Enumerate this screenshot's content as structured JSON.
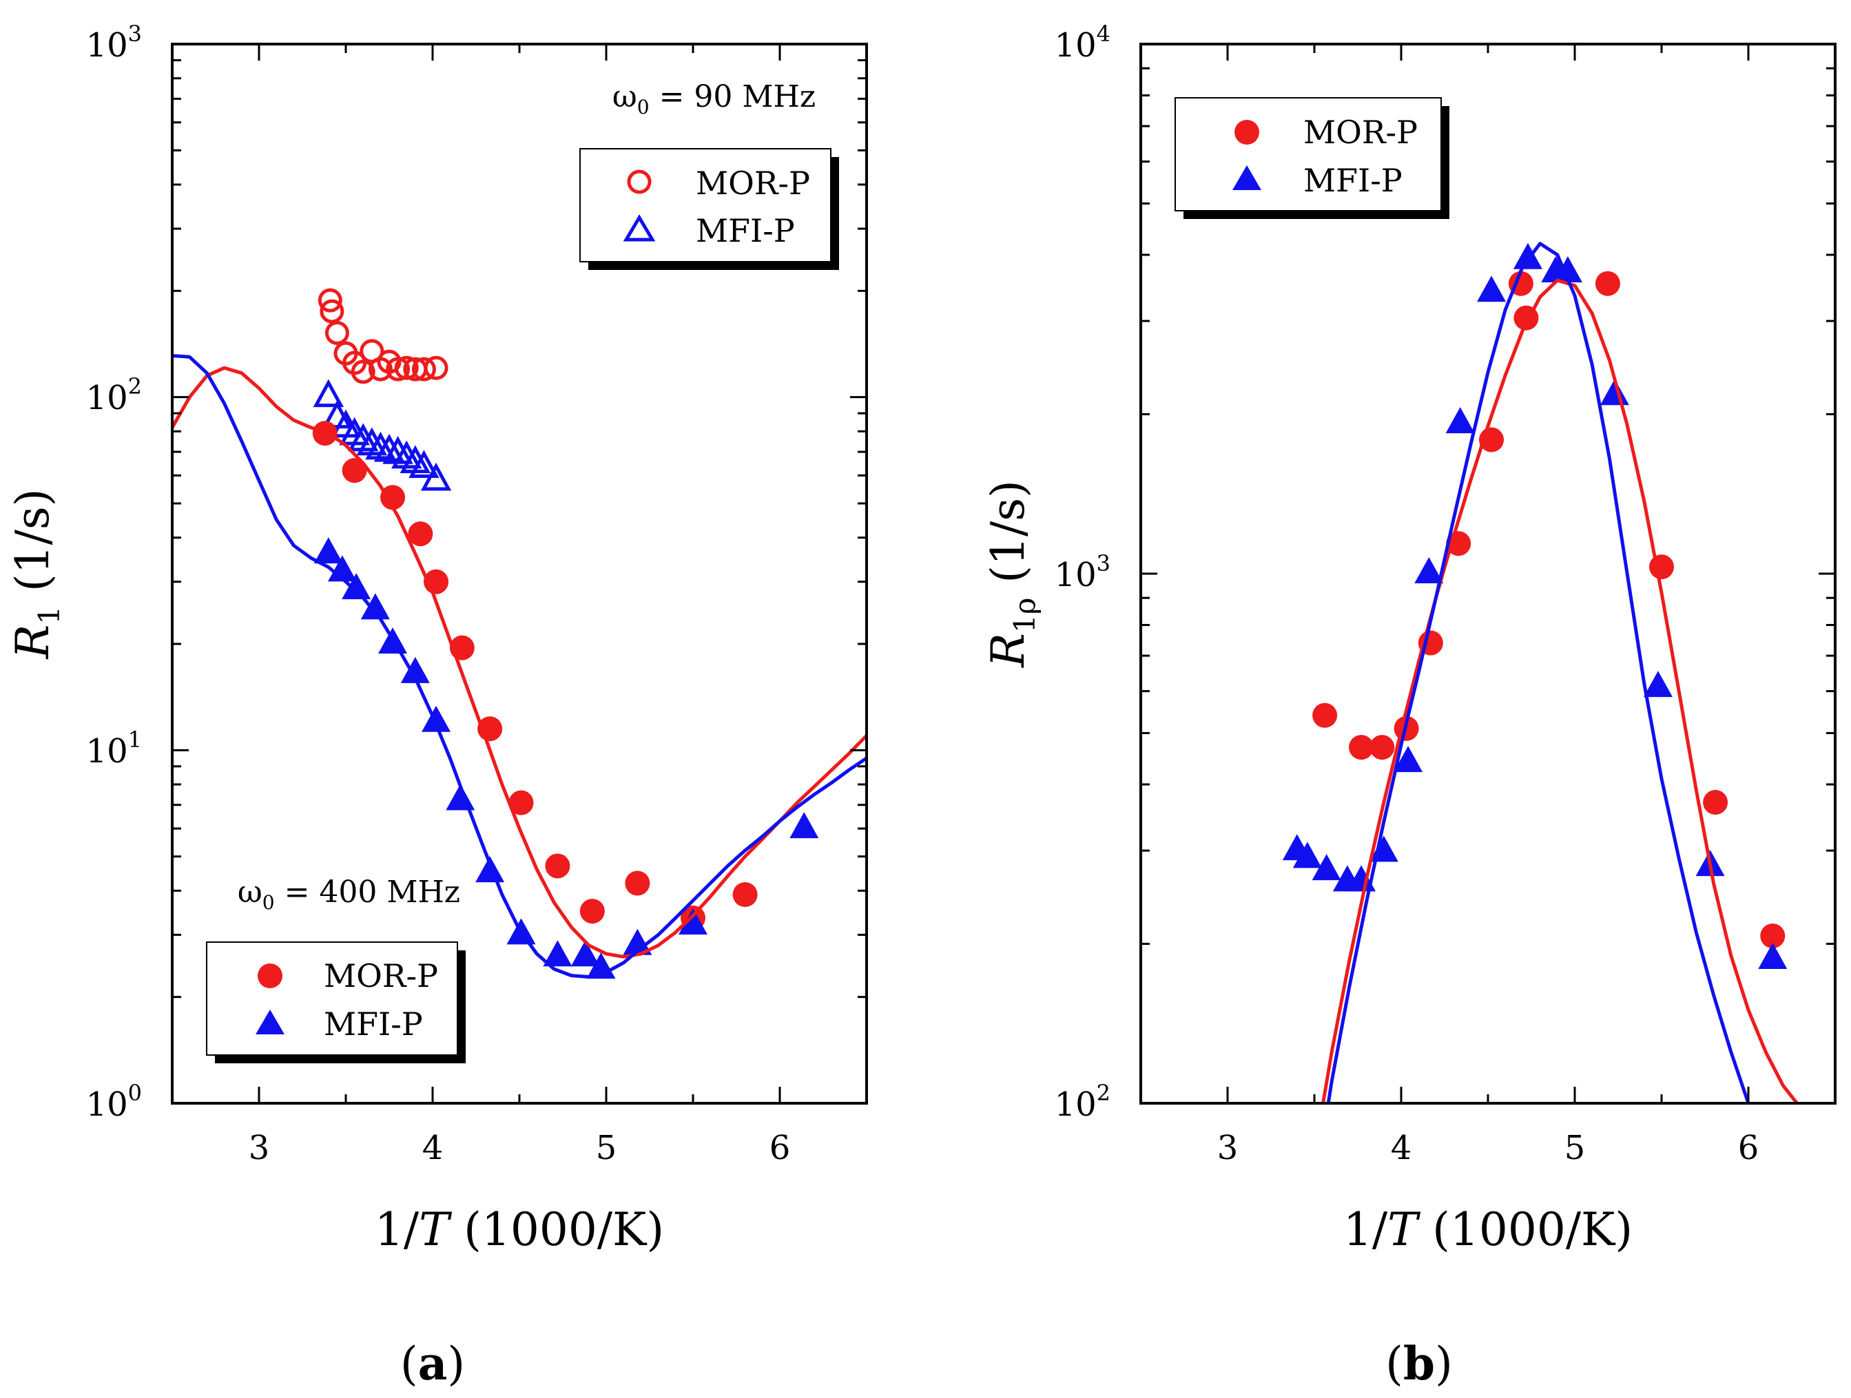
{
  "colors": {
    "red": "#ee1c1c",
    "blue": "#1010ee",
    "axis": "#000000"
  },
  "chart_data": [
    {
      "type": "scatter",
      "panel_label": {
        "open": "(",
        "letter": "a",
        "close": ")"
      },
      "xlabel": {
        "prefix": "1/",
        "var": "T",
        "suffix": " (1000/K)"
      },
      "ylabel": {
        "var": "R",
        "sub": "1",
        "suffix": " (1/s)"
      },
      "xlim": [
        2.5,
        6.5
      ],
      "ylim": [
        1,
        1000
      ],
      "yscale": "log",
      "xticks": [
        "3",
        "4",
        "5",
        "6"
      ],
      "yticks": [
        {
          "base": "10",
          "exp": "0"
        },
        {
          "base": "10",
          "exp": "1"
        },
        {
          "base": "10",
          "exp": "2"
        },
        {
          "base": "10",
          "exp": "3"
        }
      ],
      "annotations": [
        {
          "omega": "ω",
          "sub": "0",
          "text": " = 90 MHz"
        },
        {
          "omega": "ω",
          "sub": "0",
          "text": " = 400 MHz"
        }
      ],
      "legends": [
        {
          "entries": [
            "MOR-P",
            "MFI-P"
          ],
          "markers": [
            "open-circle",
            "open-triangle"
          ],
          "placement": "top-right"
        },
        {
          "entries": [
            "MOR-P",
            "MFI-P"
          ],
          "markers": [
            "filled-circle",
            "filled-triangle"
          ],
          "placement": "bottom-left"
        }
      ],
      "series": [
        {
          "name": "MOR-P (90 MHz)",
          "marker": "open-circle",
          "color": "red",
          "x": [
            3.41,
            3.42,
            3.45,
            3.5,
            3.55,
            3.6,
            3.65,
            3.7,
            3.75,
            3.8,
            3.85,
            3.9,
            3.95,
            4.02
          ],
          "y": [
            188,
            175,
            152,
            133,
            125,
            118,
            135,
            120,
            126,
            120,
            121,
            120,
            120,
            121
          ]
        },
        {
          "name": "MFI-P (90 MHz)",
          "marker": "open-triangle",
          "color": "blue",
          "x": [
            3.4,
            3.45,
            3.5,
            3.55,
            3.6,
            3.65,
            3.7,
            3.75,
            3.8,
            3.85,
            3.9,
            3.95,
            4.02
          ],
          "y": [
            100,
            87,
            82,
            78,
            75,
            73,
            71,
            70,
            69,
            67,
            65,
            63,
            58
          ]
        },
        {
          "name": "MOR-P (400 MHz)",
          "marker": "filled-circle",
          "color": "red",
          "x": [
            3.38,
            3.55,
            3.77,
            3.93,
            4.02,
            4.17,
            4.33,
            4.51,
            4.72,
            4.92,
            5.18,
            5.5,
            5.8
          ],
          "y": [
            79,
            62,
            52,
            41,
            30,
            19.5,
            11.5,
            7.1,
            4.7,
            3.5,
            4.2,
            3.35,
            3.9
          ]
        },
        {
          "name": "MFI-P (400 MHz)",
          "marker": "filled-triangle",
          "color": "blue",
          "x": [
            3.4,
            3.48,
            3.56,
            3.67,
            3.77,
            3.9,
            4.02,
            4.16,
            4.33,
            4.51,
            4.72,
            4.88,
            4.97,
            5.18,
            5.5,
            6.14
          ],
          "y": [
            36,
            32,
            28.5,
            25,
            20,
            16.5,
            12,
            7.2,
            4.5,
            3.0,
            2.6,
            2.6,
            2.4,
            2.8,
            3.2,
            6.0
          ]
        },
        {
          "name": "MOR-P fit",
          "marker": "line",
          "color": "red",
          "x": [
            2.5,
            2.6,
            2.7,
            2.8,
            2.9,
            3.0,
            3.1,
            3.2,
            3.3,
            3.4,
            3.5,
            3.6,
            3.7,
            3.8,
            3.9,
            4.0,
            4.1,
            4.2,
            4.3,
            4.4,
            4.5,
            4.6,
            4.7,
            4.8,
            4.9,
            5.0,
            5.1,
            5.2,
            5.3,
            5.4,
            5.5,
            5.6,
            5.7,
            5.8,
            5.9,
            6.0,
            6.1,
            6.2,
            6.3,
            6.4,
            6.5
          ],
          "y": [
            82,
            100,
            115,
            121,
            117,
            106,
            94,
            86,
            82,
            79,
            73,
            65,
            56,
            46,
            36,
            28,
            20.5,
            15,
            11,
            8.0,
            6.0,
            4.6,
            3.7,
            3.15,
            2.8,
            2.65,
            2.6,
            2.65,
            2.8,
            3.05,
            3.4,
            3.85,
            4.4,
            5.0,
            5.6,
            6.3,
            7.1,
            7.9,
            8.8,
            9.8,
            11
          ]
        },
        {
          "name": "MFI-P fit",
          "marker": "line",
          "color": "blue",
          "x": [
            2.5,
            2.6,
            2.7,
            2.8,
            2.9,
            3.0,
            3.1,
            3.2,
            3.3,
            3.4,
            3.5,
            3.6,
            3.7,
            3.8,
            3.9,
            4.0,
            4.1,
            4.2,
            4.3,
            4.4,
            4.5,
            4.6,
            4.7,
            4.8,
            4.9,
            5.0,
            5.1,
            5.2,
            5.3,
            5.4,
            5.5,
            5.6,
            5.7,
            5.8,
            5.9,
            6.0,
            6.1,
            6.2,
            6.3,
            6.4,
            6.5
          ],
          "y": [
            131,
            130,
            117,
            96,
            75,
            58,
            45,
            38,
            35,
            33,
            30,
            27,
            23.5,
            19.5,
            16,
            12.5,
            9.5,
            7.0,
            5.2,
            3.9,
            3.1,
            2.65,
            2.4,
            2.3,
            2.28,
            2.35,
            2.5,
            2.75,
            3.0,
            3.35,
            3.75,
            4.2,
            4.7,
            5.2,
            5.7,
            6.3,
            6.9,
            7.5,
            8.1,
            8.8,
            9.5
          ]
        }
      ]
    },
    {
      "type": "scatter",
      "panel_label": {
        "open": "(",
        "letter": "b",
        "close": ")"
      },
      "xlabel": {
        "prefix": "1/",
        "var": "T",
        "suffix": " (1000/K)"
      },
      "ylabel": {
        "var": "R",
        "sub": "1ρ",
        "suffix": " (1/s)"
      },
      "xlim": [
        2.5,
        6.5
      ],
      "ylim": [
        100,
        10000
      ],
      "yscale": "log",
      "xticks": [
        "3",
        "4",
        "5",
        "6"
      ],
      "yticks": [
        {
          "base": "10",
          "exp": "2"
        },
        {
          "base": "10",
          "exp": "3"
        },
        {
          "base": "10",
          "exp": "4"
        }
      ],
      "legends": [
        {
          "entries": [
            "MOR-P",
            "MFI-P"
          ],
          "markers": [
            "filled-circle",
            "filled-triangle"
          ],
          "placement": "top-left"
        }
      ],
      "series": [
        {
          "name": "MOR-P",
          "marker": "filled-circle",
          "color": "red",
          "x": [
            3.56,
            3.77,
            3.89,
            4.03,
            4.17,
            4.33,
            4.52,
            4.69,
            4.72,
            5.19,
            5.5,
            5.81,
            6.14
          ],
          "y": [
            540,
            470,
            470,
            510,
            740,
            1140,
            1790,
            3530,
            3040,
            3530,
            1030,
            370,
            207
          ]
        },
        {
          "name": "MFI-P",
          "marker": "filled-triangle",
          "color": "blue",
          "x": [
            3.4,
            3.46,
            3.57,
            3.69,
            3.77,
            3.9,
            4.04,
            4.16,
            4.34,
            4.52,
            4.73,
            4.89,
            4.96,
            5.23,
            5.48,
            5.78,
            6.14
          ],
          "y": [
            300,
            290,
            275,
            262,
            262,
            298,
            440,
            1000,
            1920,
            3400,
            3920,
            3700,
            3700,
            2170,
            610,
            280,
            187
          ]
        },
        {
          "name": "MOR-P fit",
          "marker": "line",
          "color": "red",
          "x": [
            3.55,
            3.6,
            3.7,
            3.8,
            3.9,
            4.0,
            4.1,
            4.2,
            4.3,
            4.4,
            4.5,
            4.6,
            4.7,
            4.8,
            4.9,
            5.0,
            5.1,
            5.2,
            5.3,
            5.4,
            5.5,
            5.6,
            5.7,
            5.8,
            5.9,
            6.0,
            6.1,
            6.2,
            6.28
          ],
          "y": [
            100,
            125,
            185,
            265,
            370,
            505,
            680,
            900,
            1170,
            1500,
            1900,
            2370,
            2880,
            3330,
            3580,
            3500,
            3100,
            2530,
            1920,
            1370,
            920,
            600,
            390,
            260,
            190,
            150,
            125,
            108,
            100
          ]
        },
        {
          "name": "MFI-P fit",
          "marker": "line",
          "color": "blue",
          "x": [
            3.58,
            3.6,
            3.7,
            3.8,
            3.9,
            4.0,
            4.1,
            4.2,
            4.3,
            4.4,
            4.5,
            4.6,
            4.7,
            4.8,
            4.9,
            5.0,
            5.1,
            5.2,
            5.3,
            5.4,
            5.5,
            5.6,
            5.7,
            5.8,
            5.9,
            6.0
          ],
          "y": [
            100,
            110,
            165,
            240,
            340,
            475,
            650,
            900,
            1260,
            1750,
            2400,
            3150,
            3800,
            4200,
            4000,
            3350,
            2480,
            1650,
            1010,
            620,
            410,
            290,
            210,
            160,
            125,
            100
          ]
        }
      ]
    }
  ]
}
